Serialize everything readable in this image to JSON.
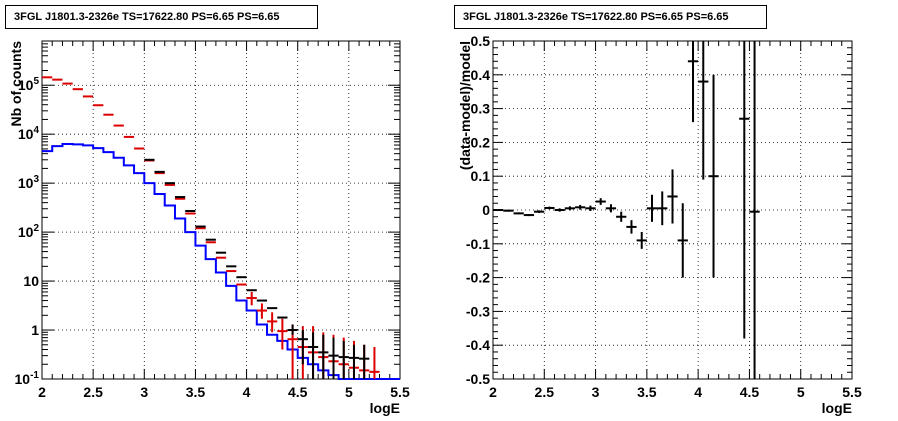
{
  "chart_data": [
    {
      "type": "line",
      "title": "3FGL J1801.3-2326e TS=17622.80 PS=6.65 PS=6.65",
      "xlabel": "logE",
      "ylabel": "Nb of counts",
      "xlim": [
        2,
        5.5
      ],
      "ylim": [
        0.1,
        800000
      ],
      "yscale": "log",
      "x_ticks": [
        "2",
        "2.5",
        "3",
        "3.5",
        "4",
        "4.5",
        "5",
        "5.5"
      ],
      "y_ticks": [
        "10^-1",
        "1",
        "10",
        "10^2",
        "10^3",
        "10^4",
        "10^5"
      ],
      "grid": true,
      "series": [
        {
          "name": "",
          "color": "#0000ff",
          "style": "step",
          "x": [
            2.05,
            2.15,
            2.25,
            2.35,
            2.45,
            2.55,
            2.65,
            2.75,
            2.85,
            2.95,
            3.05,
            3.15,
            3.25,
            3.35,
            3.45,
            3.55,
            3.65,
            3.75,
            3.85,
            3.95,
            4.05,
            4.15,
            4.25,
            4.35,
            4.45,
            4.55,
            4.65,
            4.75,
            4.85,
            4.95,
            5.05,
            5.15,
            5.25,
            5.35,
            5.45
          ],
          "y": [
            4500,
            5700,
            6300,
            6200,
            5900,
            5200,
            4300,
            3300,
            2300,
            1600,
            1000,
            600,
            350,
            190,
            100,
            53,
            28,
            15,
            8,
            4,
            2.5,
            1.3,
            0.8,
            0.6,
            0.4,
            0.27,
            0.2,
            0.15,
            0.12,
            0.1,
            0.1,
            0.1,
            0.1,
            0.1,
            0.1
          ]
        },
        {
          "name": "",
          "color": "#dd0000",
          "style": "markers",
          "x": [
            2.05,
            2.15,
            2.25,
            2.35,
            2.45,
            2.55,
            2.65,
            2.75,
            2.85,
            2.95,
            3.05,
            3.15,
            3.25,
            3.35,
            3.45,
            3.55,
            3.65,
            3.75,
            3.85,
            3.95,
            4.05,
            4.15,
            4.25,
            4.35,
            4.45,
            4.55,
            4.65,
            4.75,
            4.85,
            4.95,
            5.05,
            5.15,
            5.25
          ],
          "y": [
            145000,
            130000,
            108000,
            83000,
            59000,
            39000,
            25000,
            15000,
            8800,
            5100,
            2900,
            1600,
            920,
            480,
            240,
            120,
            62,
            30,
            16,
            8.5,
            4.5,
            2.5,
            1.5,
            0.95,
            0.65,
            0.45,
            0.35,
            0.28,
            0.23,
            0.2,
            0.17,
            0.15,
            0.14
          ],
          "y_low": [
            null,
            null,
            null,
            null,
            null,
            null,
            null,
            null,
            null,
            null,
            null,
            null,
            null,
            null,
            null,
            null,
            null,
            null,
            null,
            null,
            3.2,
            1.7,
            0.9,
            0.4,
            0.1,
            0.1,
            0.1,
            0.1,
            0.1,
            0.1,
            0.1,
            0.1,
            0.1
          ],
          "y_high": [
            null,
            null,
            null,
            null,
            null,
            null,
            null,
            null,
            null,
            null,
            null,
            null,
            null,
            null,
            null,
            null,
            null,
            null,
            null,
            null,
            6,
            3.5,
            2.3,
            1.7,
            1.3,
            1.2,
            1.2,
            0.9,
            0.8,
            0.7,
            0.6,
            0.5,
            0.45
          ]
        },
        {
          "name": "",
          "color": "#000000",
          "style": "markers",
          "x": [
            3.05,
            3.15,
            3.25,
            3.35,
            3.45,
            3.55,
            3.65,
            3.75,
            3.85,
            3.95,
            4.05,
            4.15,
            4.25,
            4.35,
            4.45,
            4.55,
            4.65,
            4.75,
            4.85,
            4.95,
            5.05,
            5.15
          ],
          "y": [
            3000,
            1700,
            1000,
            520,
            270,
            130,
            70,
            38,
            20,
            12,
            6.5,
            4,
            2.8,
            1.8,
            1,
            0.65,
            0.45,
            0.35,
            0.3,
            0.28,
            0.27,
            0.26
          ],
          "y_low": [
            null,
            null,
            null,
            null,
            null,
            null,
            null,
            null,
            null,
            null,
            null,
            null,
            null,
            null,
            0.8,
            0.2,
            0.1,
            0.1,
            0.1,
            0.1,
            0.1,
            0.1
          ],
          "y_high": [
            null,
            null,
            null,
            null,
            null,
            null,
            null,
            null,
            null,
            null,
            null,
            null,
            null,
            null,
            1.3,
            1,
            0.9,
            0.8,
            0.7,
            0.6,
            0.5,
            0.5
          ]
        }
      ]
    },
    {
      "type": "scatter",
      "title": "3FGL J1801.3-2326e TS=17622.80 PS=6.65 PS=6.65",
      "xlabel": "logE",
      "ylabel": "(data-model)/model",
      "xlim": [
        2,
        5.5
      ],
      "ylim": [
        -0.5,
        0.5
      ],
      "x_ticks": [
        "2",
        "2.5",
        "3",
        "3.5",
        "4",
        "4.5",
        "5",
        "5.5"
      ],
      "y_ticks": [
        "-0.5",
        "-0.4",
        "-0.3",
        "-0.2",
        "-0.1",
        "0",
        "0.1",
        "0.2",
        "0.3",
        "0.4",
        "0.5"
      ],
      "grid": true,
      "series": [
        {
          "name": "",
          "color": "#000000",
          "x": [
            2.05,
            2.15,
            2.25,
            2.35,
            2.45,
            2.55,
            2.65,
            2.75,
            2.85,
            2.95,
            3.05,
            3.15,
            3.25,
            3.35,
            3.45,
            3.55,
            3.65,
            3.75,
            3.85,
            3.95,
            4.05,
            4.15,
            4.45,
            4.55
          ],
          "y": [
            0.0,
            -0.002,
            -0.01,
            -0.015,
            -0.005,
            0.006,
            0.0,
            0.005,
            0.008,
            0.005,
            0.025,
            0.005,
            -0.02,
            -0.05,
            -0.09,
            0.005,
            0.005,
            0.04,
            -0.09,
            0.44,
            0.38,
            0.1,
            0.27,
            -0.005
          ],
          "err": [
            0.003,
            0.003,
            0.003,
            0.003,
            0.004,
            0.004,
            0.005,
            0.006,
            0.007,
            0.008,
            0.01,
            0.012,
            0.015,
            0.02,
            0.025,
            0.04,
            0.05,
            0.08,
            0.11,
            0.18,
            0.29,
            0.3,
            0.65,
            0.6
          ]
        }
      ]
    }
  ]
}
